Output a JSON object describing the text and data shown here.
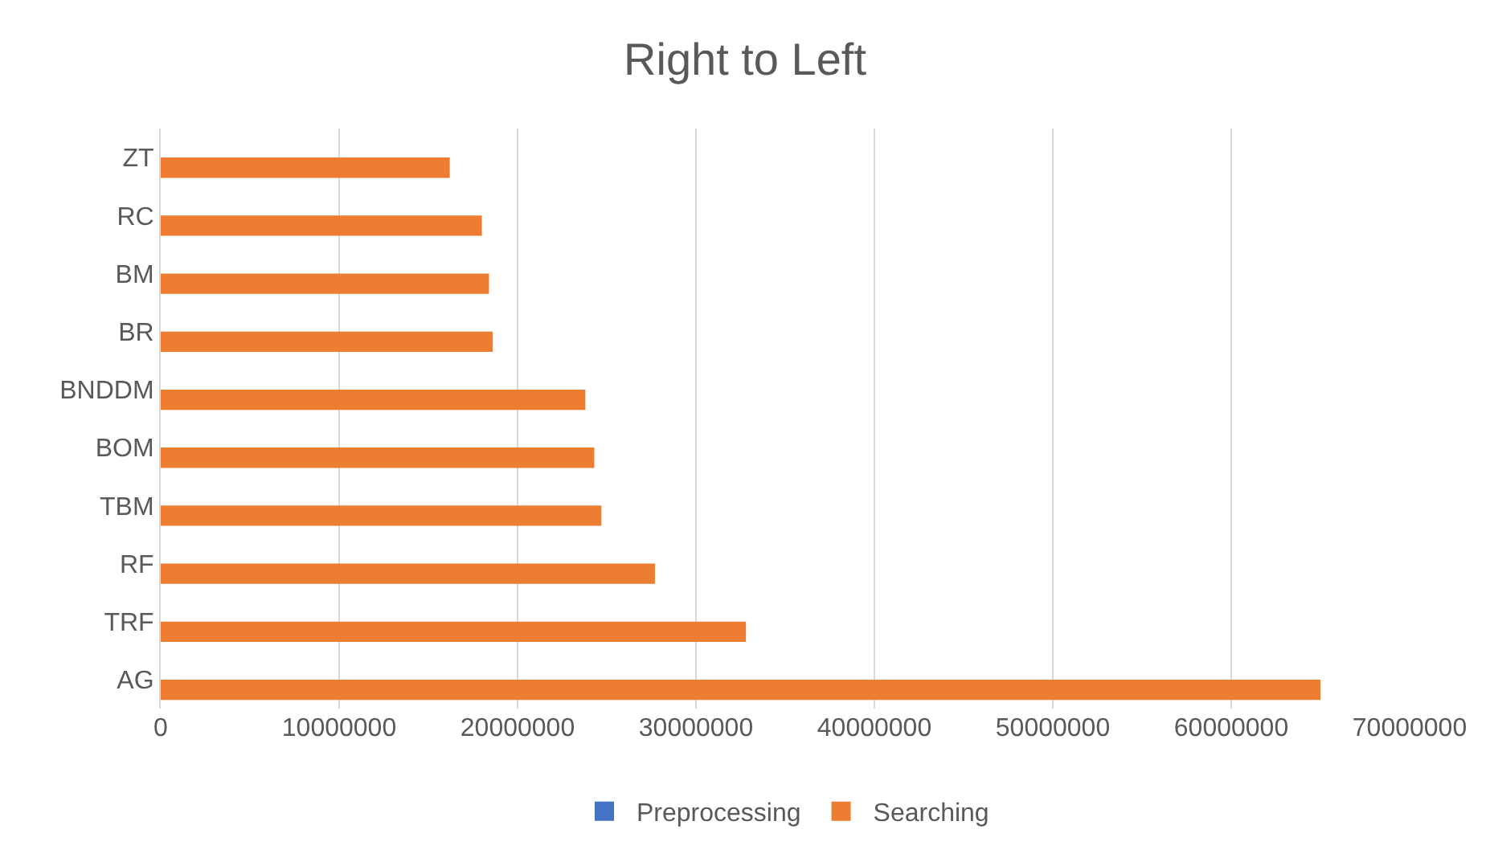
{
  "chart_data": {
    "type": "bar",
    "orientation": "horizontal",
    "title": "Right to Left",
    "categories": [
      "ZT",
      "RC",
      "BM",
      "BR",
      "BNDDM",
      "BOM",
      "TBM",
      "RF",
      "TRF",
      "AG"
    ],
    "series": [
      {
        "name": "Preprocessing",
        "color": "#4472c4",
        "values": [
          0,
          0,
          0,
          0,
          0,
          0,
          0,
          0,
          0,
          0
        ]
      },
      {
        "name": "Searching",
        "color": "#ed7d31",
        "values": [
          16200000,
          18000000,
          18400000,
          18600000,
          23800000,
          24300000,
          24700000,
          27700000,
          32800000,
          65000000
        ]
      }
    ],
    "xlim": [
      0,
      70000000
    ],
    "xticks": [
      0,
      10000000,
      20000000,
      30000000,
      40000000,
      50000000,
      60000000,
      70000000
    ],
    "grid": "x",
    "legend": "bottom"
  }
}
